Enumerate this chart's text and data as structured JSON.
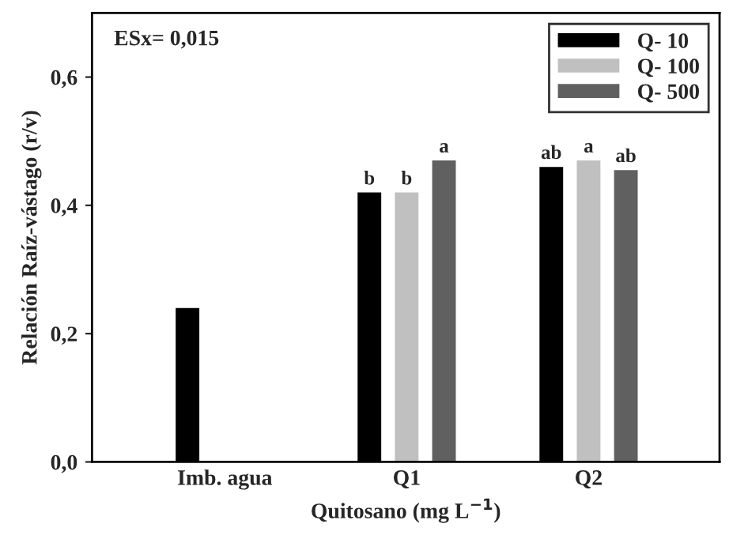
{
  "chart_data": {
    "type": "bar",
    "xlabel": "Quitosano (mg L$^{−1}$)",
    "ylabel": "Relación Raíz-vástago (r/v)",
    "categories": [
      "Imb. agua",
      "Q1",
      "Q2"
    ],
    "series": [
      {
        "name": "Q- 10",
        "color": "#000000",
        "values": [
          0.24,
          0.42,
          0.46
        ],
        "value_labels": [
          null,
          "b",
          "ab"
        ]
      },
      {
        "name": "Q- 100",
        "color": "#c0c0c0",
        "values": [
          null,
          0.42,
          0.47
        ],
        "value_labels": [
          null,
          "b",
          "a"
        ]
      },
      {
        "name": "Q- 500",
        "color": "#606060",
        "values": [
          null,
          0.47,
          0.455
        ],
        "value_labels": [
          null,
          "a",
          "ab"
        ]
      }
    ],
    "ylim": [
      0,
      0.7
    ],
    "yticks": [
      {
        "value": 0,
        "label": "0,0"
      },
      {
        "value": 0.2,
        "label": "0,2"
      },
      {
        "value": 0.4,
        "label": "0,4"
      },
      {
        "value": 0.6,
        "label": "0,6"
      }
    ],
    "annotations": [
      "ESx= 0,015"
    ],
    "legend": "top right",
    "grid": false
  }
}
